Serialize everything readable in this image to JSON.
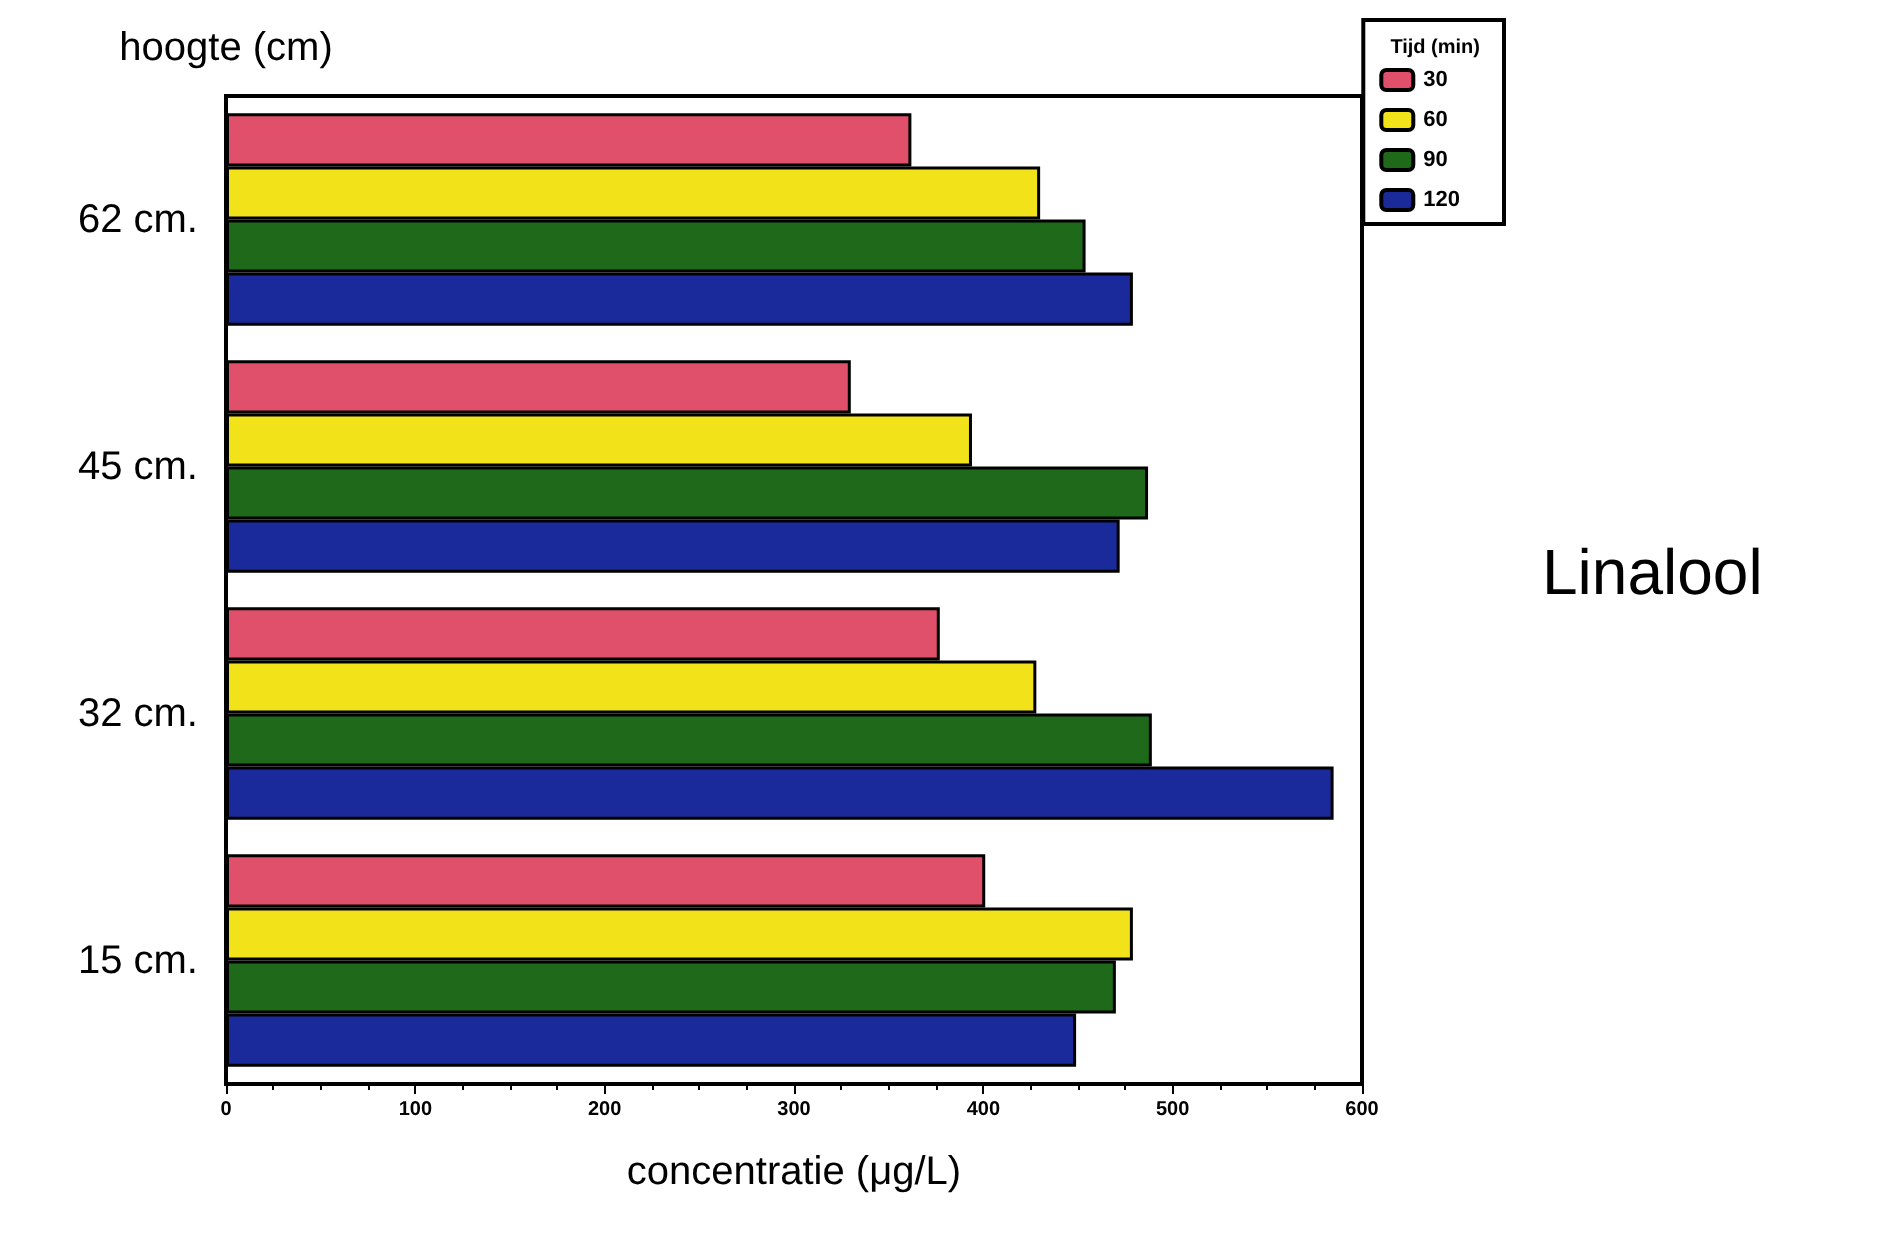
{
  "chart_data": {
    "type": "bar",
    "orientation": "horizontal",
    "ylabel": "hoogte (cm)",
    "xlabel": "concentratie (μg/L)",
    "legend_title": "Tijd (min)",
    "legend": "top right",
    "grid": false,
    "categories": [
      "62 cm.",
      "45 cm.",
      "32 cm.",
      "15 cm."
    ],
    "series": [
      {
        "name": "30",
        "color": "#e0506a",
        "values": [
          362,
          330,
          377,
          401
        ]
      },
      {
        "name": "60",
        "color": "#f2e21a",
        "values": [
          430,
          394,
          428,
          479
        ]
      },
      {
        "name": "90",
        "color": "#1e6a1a",
        "values": [
          454,
          487,
          489,
          470
        ]
      },
      {
        "name": "120",
        "color": "#1a2a9a",
        "values": [
          479,
          472,
          585,
          449
        ]
      }
    ],
    "xlim": [
      0,
      600
    ],
    "xticks": [
      0,
      100,
      200,
      300,
      400,
      500,
      600
    ],
    "annotations": [
      "Linalool"
    ]
  }
}
